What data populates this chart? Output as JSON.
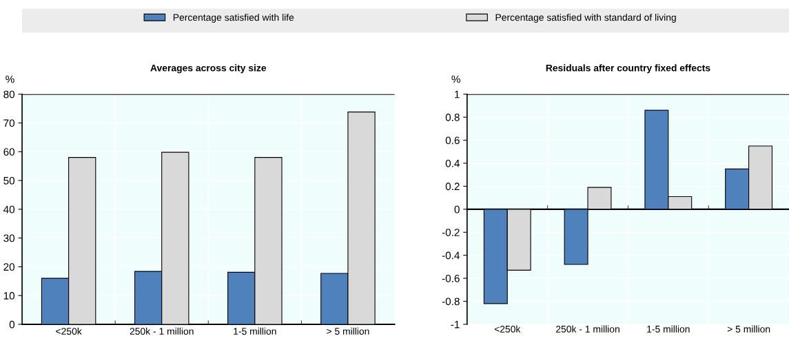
{
  "chart_data": [
    {
      "type": "bar",
      "title": "Averages across city size",
      "ylabel": "%",
      "categories": [
        "<250k",
        "250k - 1 million",
        "1-5 million",
        "> 5 million"
      ],
      "series": [
        {
          "name": "Percentage satisfied with life",
          "color": "#4f81bd",
          "values": [
            16,
            18.4,
            18.1,
            17.7
          ]
        },
        {
          "name": "Percentage satisfied with standard of living",
          "color": "#d9d9d9",
          "values": [
            58,
            59.8,
            58,
            73.8
          ]
        }
      ],
      "ylim": [
        0,
        80
      ],
      "yticks": [
        0,
        10,
        20,
        30,
        40,
        50,
        60,
        70,
        80
      ],
      "grid": true,
      "legend": "top"
    },
    {
      "type": "bar",
      "title": "Residuals after country fixed effects",
      "ylabel": "%",
      "categories": [
        "<250k",
        "250k - 1 million",
        "1-5 million",
        "> 5 million"
      ],
      "series": [
        {
          "name": "Percentage satisfied with life",
          "color": "#4f81bd",
          "values": [
            -0.82,
            -0.48,
            0.86,
            0.35
          ]
        },
        {
          "name": "Percentage satisfied with standard of living",
          "color": "#d9d9d9",
          "values": [
            -0.53,
            0.19,
            0.11,
            0.55
          ]
        }
      ],
      "ylim": [
        -1,
        1
      ],
      "yticks": [
        -1,
        -0.8,
        -0.6,
        -0.4,
        -0.2,
        0,
        0.2,
        0.4,
        0.6,
        0.8,
        1
      ],
      "grid": true
    }
  ]
}
